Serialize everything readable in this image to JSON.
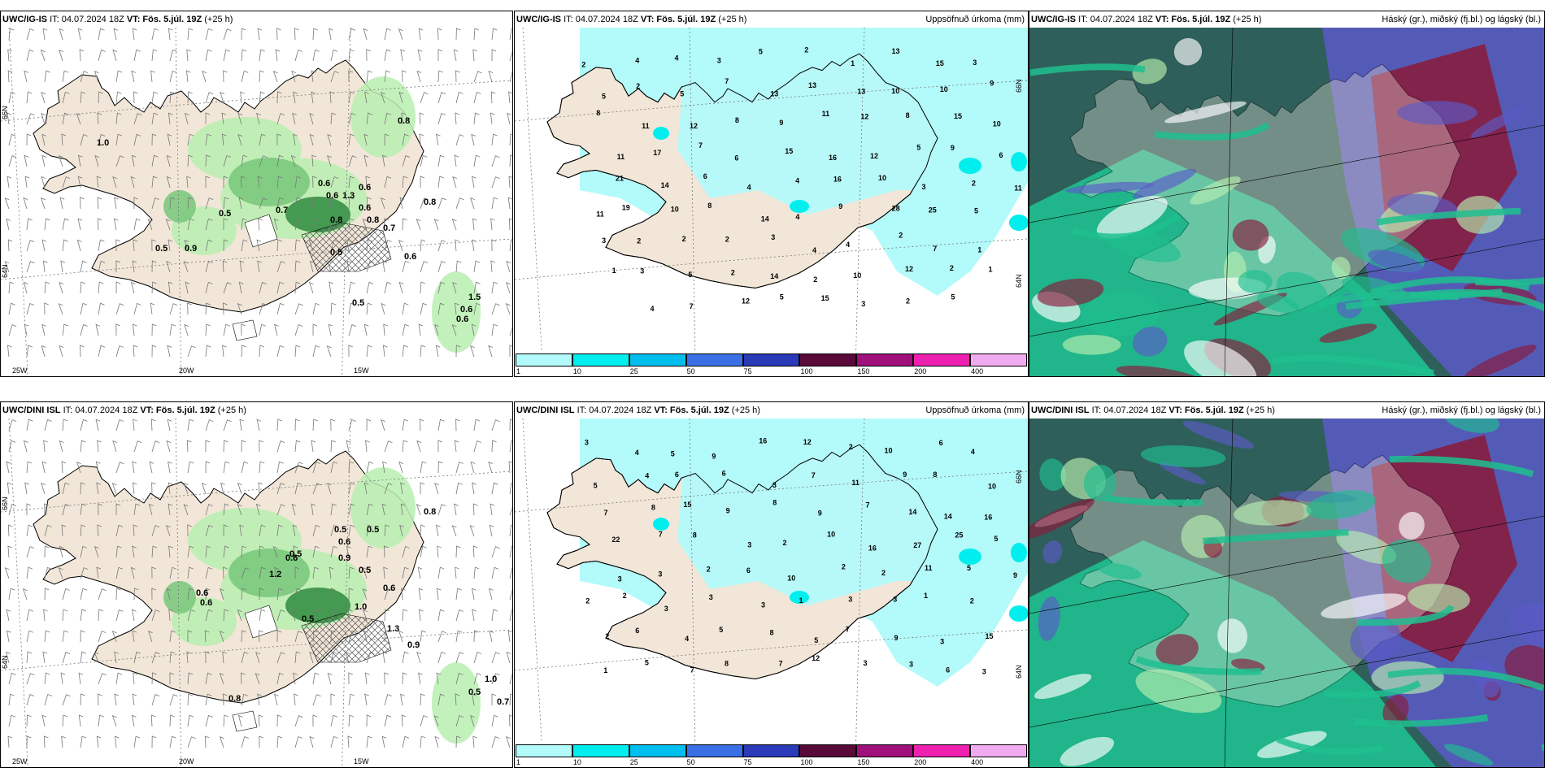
{
  "run_info": "IT: 04.07.2024 18Z",
  "vt_label": "VT:",
  "vt_value": "Fös. 5.júl. 19Z",
  "lead": "(+25 h)",
  "models": [
    {
      "name": "UWC/IG-IS"
    },
    {
      "name": "UWC/DINI ISL"
    }
  ],
  "precip_title": "Uppsöfnuð úrkoma (mm)",
  "cloud_title": "Háský (gr.), miðský (fj.bl.) og lágský (bl.)",
  "axis_labels": {
    "lat66": "66N",
    "lat64": "64N",
    "lon25": "25W",
    "lon20": "20W",
    "lon15": "15W"
  },
  "precip_legend": [
    "1",
    "10",
    "25",
    "50",
    "75",
    "100",
    "150",
    "200",
    "400"
  ],
  "colors": {
    "land": "#f2e6d8",
    "precip_light": "#b3fafa",
    "precip_cyan": "#00eeee",
    "green_light": "#b8efb0",
    "green_mid": "#77c77a",
    "green_dark": "#2e8b3e",
    "cloud_blue": "#5b5bc8",
    "cloud_red": "#8b1a3a",
    "cloud_green": "#1fbf8f",
    "cloud_dark": "#2f5f5a"
  },
  "gust_values": [
    [
      "1.0",
      "0.8",
      "0.5",
      "0.9",
      "0.5",
      "0.7",
      "0.6",
      "0.6",
      "0.8",
      "0.7",
      "1.3",
      "0.6",
      "0.8",
      "0.6",
      "0.6",
      "0.8",
      "0.5",
      "1.5",
      "0.6",
      "0.6",
      "0.5"
    ],
    [
      "0.8",
      "0.5",
      "0.5",
      "0.6",
      "0.9",
      "0.6",
      "0.5",
      "1.2",
      "0.6",
      "0.6",
      "0.5",
      "0.5",
      "1.0",
      "0.6",
      "1.3",
      "0.9",
      "0.8",
      "1.0",
      "0.5",
      "0.7"
    ]
  ],
  "precip_values": [
    [
      "2",
      "4",
      "4",
      "3",
      "5",
      "2",
      "1",
      "13",
      "15",
      "3",
      "5",
      "2",
      "5",
      "7",
      "13",
      "13",
      "13",
      "10",
      "10",
      "9",
      "8",
      "11",
      "12",
      "8",
      "9",
      "11",
      "12",
      "8",
      "15",
      "10",
      "11",
      "17",
      "7",
      "6",
      "15",
      "16",
      "12",
      "5",
      "9",
      "6",
      "21",
      "14",
      "6",
      "4",
      "4",
      "16",
      "10",
      "3",
      "2",
      "11",
      "19",
      "10",
      "8",
      "14",
      "4",
      "9",
      "28",
      "25",
      "5",
      "11",
      "2",
      "2",
      "2",
      "3",
      "4",
      "4",
      "2",
      "7",
      "1",
      "3",
      "3",
      "5",
      "2",
      "14",
      "2",
      "10",
      "12",
      "2",
      "1",
      "1",
      "4",
      "7",
      "12",
      "5",
      "15",
      "3",
      "2",
      "5"
    ],
    [
      "3",
      "4",
      "5",
      "9",
      "16",
      "12",
      "2",
      "10",
      "6",
      "4",
      "5",
      "4",
      "6",
      "6",
      "3",
      "7",
      "11",
      "9",
      "8",
      "10",
      "7",
      "8",
      "15",
      "9",
      "8",
      "9",
      "7",
      "14",
      "14",
      "16",
      "22",
      "7",
      "8",
      "3",
      "2",
      "10",
      "16",
      "27",
      "25",
      "5",
      "3",
      "3",
      "2",
      "6",
      "10",
      "2",
      "2",
      "11",
      "5",
      "9",
      "2",
      "3",
      "3",
      "3",
      "1",
      "3",
      "3",
      "1",
      "2",
      "2",
      "6",
      "4",
      "5",
      "8",
      "5",
      "7",
      "9",
      "3",
      "15",
      "2",
      "5",
      "7",
      "8",
      "7",
      "12",
      "3",
      "3",
      "6",
      "3",
      "1"
    ]
  ]
}
